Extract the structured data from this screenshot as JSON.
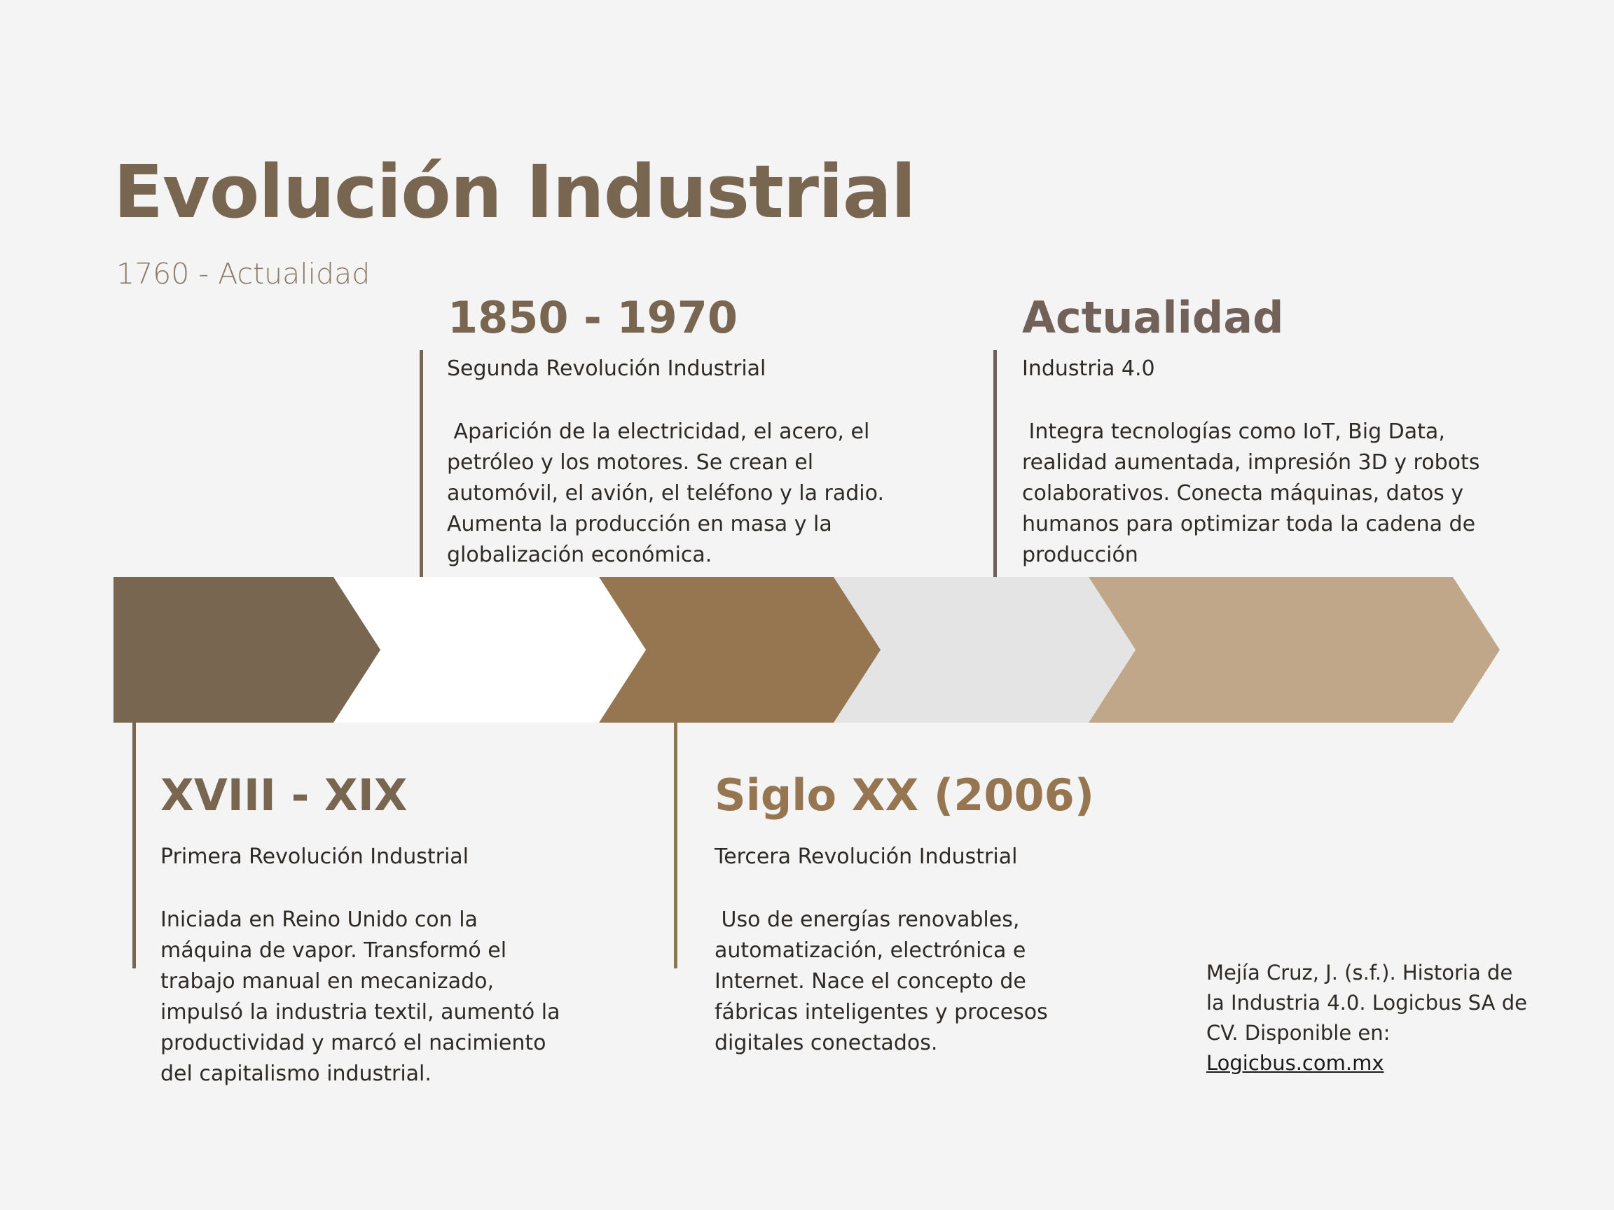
{
  "header": {
    "title": "Evolución Industrial",
    "subtitle": "1760 - Actualidad"
  },
  "colors": {
    "dark_brown": "#786651",
    "mid_brown": "#967651",
    "light_tan": "#c1a78a",
    "light_gray": "#e4e4e4",
    "white": "#ffffff",
    "line_brown": "#7a6550"
  },
  "events": {
    "first": {
      "date": "XVIII - XIX",
      "name": "Primera Revolución Industrial",
      "description": "Iniciada en Reino Unido con la\nmáquina de vapor. Transformó el\ntrabajo manual en mecanizado,\nimpulsó la industria textil, aumentó la\nproductividad y marcó el nacimiento\ndel capitalismo industrial."
    },
    "second": {
      "date": "1850 - 1970",
      "name": "Segunda Revolución Industrial",
      "description": " Aparición de la electricidad, el acero, el\npetróleo y los motores. Se crean el\nautomóvil, el avión, el teléfono y la radio.\nAumenta la producción en masa y la\nglobalización económica."
    },
    "third": {
      "date": "Siglo XX (2006)",
      "name": "Tercera Revolución Industrial",
      "description": " Uso de energías renovables,\nautomatización, electrónica e\nInternet. Nace el concepto de\nfábricas inteligentes y procesos\ndigitales conectados."
    },
    "fourth": {
      "date": "Actualidad",
      "name": "Industria 4.0",
      "description": " Integra tecnologías como IoT, Big Data,\nrealidad aumentada, impresión 3D y robots\ncolaborativos. Conecta máquinas, datos y\nhumanos para optimizar toda la cadena de\nproducción"
    }
  },
  "citation": {
    "text": "Mejía Cruz, J. (s.f.). Historia de la Industria 4.0. Logicbus SA de CV. Disponible en:",
    "link": "Logicbus.com.mx"
  }
}
